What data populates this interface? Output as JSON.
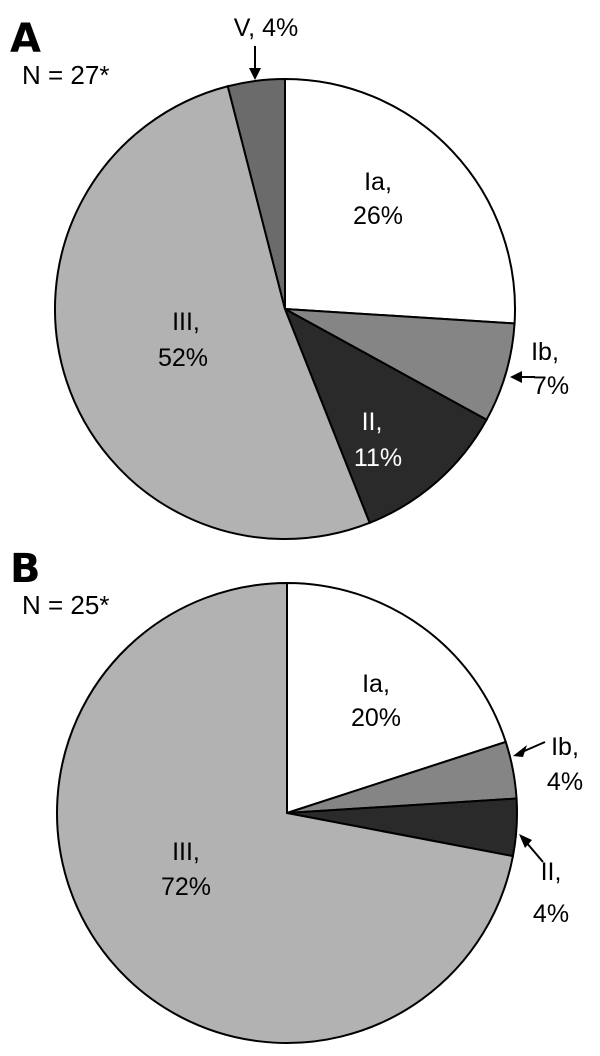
{
  "chart_data": [
    {
      "type": "pie",
      "panel": "A",
      "n_label": "N = 27*",
      "slices": [
        {
          "key": "Ia",
          "line1": "Ia,",
          "line2": "26%",
          "value": 26,
          "color": "#ffffff",
          "text_color": "#000000"
        },
        {
          "key": "Ib",
          "line1": "Ib,",
          "line2": "7%",
          "value": 7,
          "color": "#858585",
          "text_color": "#000000"
        },
        {
          "key": "II",
          "line1": "II,",
          "line2": "11%",
          "value": 11,
          "color": "#2a2a2a",
          "text_color": "#ffffff"
        },
        {
          "key": "III",
          "line1": "III,",
          "line2": "52%",
          "value": 52,
          "color": "#b2b2b2",
          "text_color": "#000000"
        },
        {
          "key": "V",
          "line1": "V, 4%",
          "line2": "",
          "value": 4,
          "color": "#6b6b6b",
          "text_color": "#000000"
        }
      ]
    },
    {
      "type": "pie",
      "panel": "B",
      "n_label": "N = 25*",
      "slices": [
        {
          "key": "Ia",
          "line1": "Ia,",
          "line2": "20%",
          "value": 20,
          "color": "#ffffff",
          "text_color": "#000000"
        },
        {
          "key": "Ib",
          "line1": "Ib,",
          "line2": "4%",
          "value": 4,
          "color": "#858585",
          "text_color": "#000000"
        },
        {
          "key": "II",
          "line1": "II,",
          "line2": "4%",
          "value": 4,
          "color": "#2a2a2a",
          "text_color": "#000000"
        },
        {
          "key": "III",
          "line1": "III,",
          "line2": "72%",
          "value": 72,
          "color": "#b2b2b2",
          "text_color": "#000000"
        }
      ]
    }
  ]
}
